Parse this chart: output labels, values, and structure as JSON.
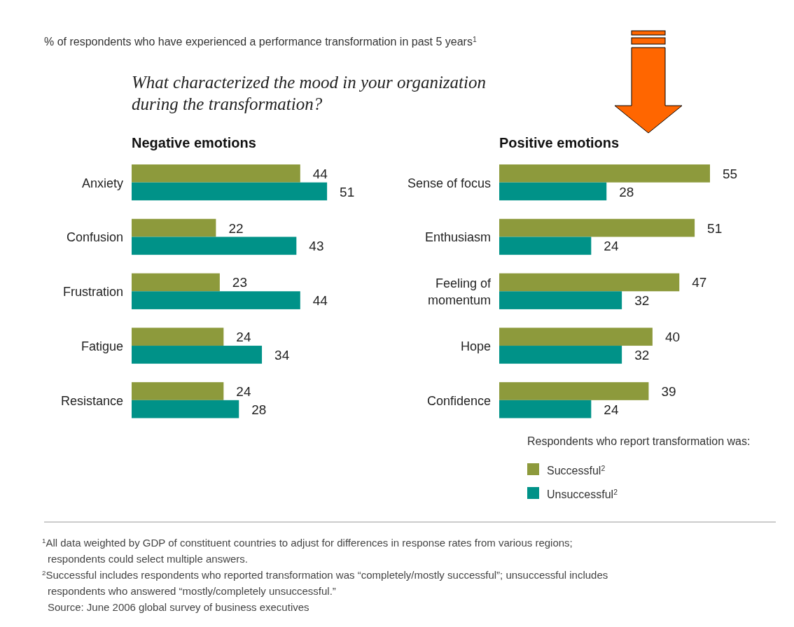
{
  "chart_data": [
    {
      "type": "bar",
      "orientation": "horizontal",
      "title": "Negative emotions",
      "categories": [
        "Anxiety",
        "Confusion",
        "Frustration",
        "Fatigue",
        "Resistance"
      ],
      "series": [
        {
          "color": "#8d9a3c",
          "values": [
            44,
            22,
            23,
            24,
            24
          ]
        },
        {
          "color": "#009288",
          "values": [
            51,
            43,
            44,
            34,
            28
          ]
        }
      ],
      "data_labels": true,
      "legend": false,
      "annotations": [
        "% of respondents who have experienced a performance transformation in past 5 years$^{1}$",
        "What characterized the mood in your organization during the transformation?"
      ]
    },
    {
      "type": "bar",
      "orientation": "horizontal",
      "title": "Positive emotions",
      "categories": [
        "Sense of focus",
        "Enthusiasm",
        "Feeling of momentum",
        "Hope",
        "Confidence"
      ],
      "series": [
        {
          "name": "Successful$^{2}$",
          "color": "#8d9a3c",
          "values": [
            55,
            51,
            47,
            40,
            39
          ]
        },
        {
          "name": "Unsuccessful$^{2}$",
          "color": "#009288",
          "values": [
            28,
            24,
            32,
            32,
            24
          ]
        }
      ],
      "data_labels": true,
      "legend": "bottom",
      "legend_title": "Respondents who report transformation was:",
      "annotations": [
        "$^{1}$All data weighted by GDP of constituent countries to adjust for differences in response rates from various regions; respondents could select multiple answers.",
        "$^{2}$Successful includes respondents who reported transformation was “completely/mostly successful”; unsuccessful includes respondents who answered “mostly/completely unsuccessful.”",
        "Source: June 2006 global survey of business executives"
      ]
    }
  ]
}
